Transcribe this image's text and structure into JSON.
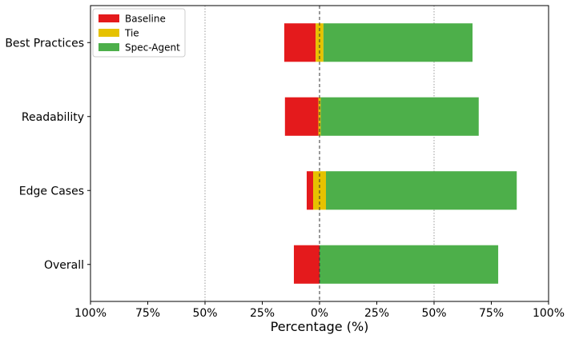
{
  "chart_data": {
    "type": "bar",
    "orientation": "horizontal",
    "stacked": "diverging",
    "categories": [
      "Best Practices",
      "Readability",
      "Edge Cases",
      "Overall"
    ],
    "series": [
      {
        "name": "Baseline",
        "color": "#e41a1c",
        "values": [
          13.7,
          14.6,
          2.8,
          11.2
        ]
      },
      {
        "name": "Tie",
        "color": "#e6c200",
        "values": [
          3.4,
          1.0,
          5.6,
          0
        ]
      },
      {
        "name": "Spec-Agent",
        "color": "#4daf4a",
        "values": [
          65.1,
          69.0,
          83.3,
          78.0
        ]
      }
    ],
    "xlabel": "Percentage (%)",
    "ylabel": "",
    "xlim": [
      -100,
      100
    ],
    "x_ticks": [
      "100%",
      "75%",
      "50%",
      "25%",
      "0%",
      "25%",
      "50%",
      "75%",
      "100%"
    ],
    "x_tick_values": [
      -100,
      -75,
      -50,
      -25,
      0,
      25,
      50,
      75,
      100
    ],
    "reference_lines": [
      -50,
      50
    ],
    "center_line": 0,
    "legend_position": "top-left",
    "grid": false
  }
}
